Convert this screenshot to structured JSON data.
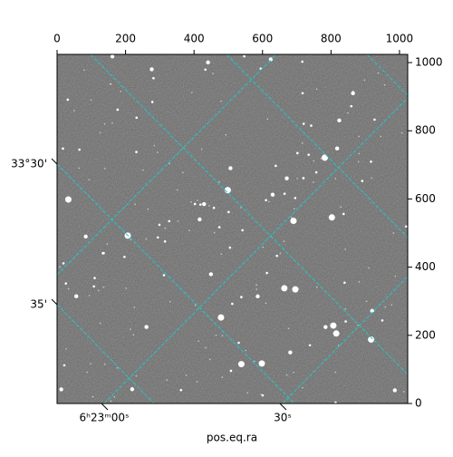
{
  "chart_data": {
    "type": "image",
    "xlabel": "pos.eq.ra",
    "xlim": [
      0,
      1024
    ],
    "ylim": [
      0,
      1024
    ],
    "xticks": [
      0,
      200,
      400,
      600,
      800,
      1000
    ],
    "yticks": [
      0,
      200,
      400,
      600,
      800,
      1000
    ],
    "ra_ticks": [
      "6ʰ23ᵐ00ˢ",
      "30ˢ"
    ],
    "dec_ticks": [
      "33°30'",
      "35'"
    ],
    "grid_color": "#22c8c8"
  }
}
